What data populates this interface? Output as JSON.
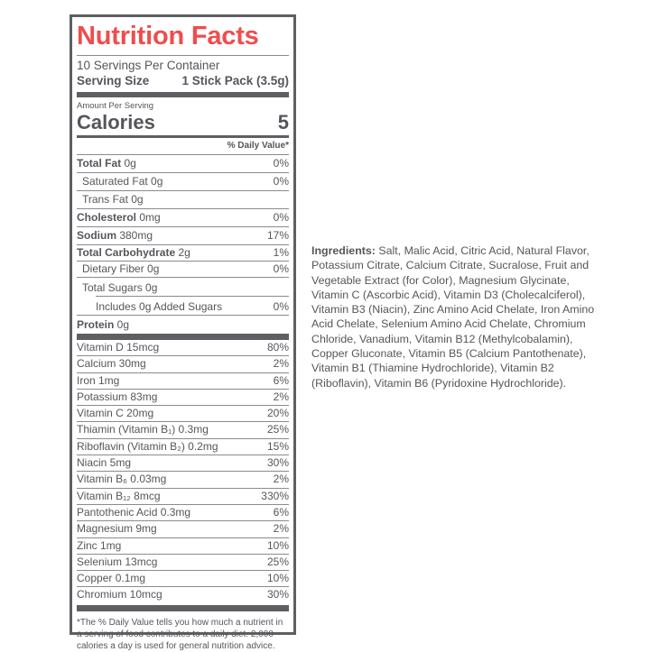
{
  "colors": {
    "title": "#f04c4c",
    "text": "#55565a",
    "rule": "#5e5f63"
  },
  "label": {
    "title": "Nutrition Facts",
    "servings_per_container": "10 Servings Per Container",
    "serving_size_label": "Serving Size",
    "serving_size_value": "1 Stick Pack (3.5g)",
    "amount_per_serving": "Amount Per Serving",
    "calories_label": "Calories",
    "calories_value": "5",
    "daily_value_header": "% Daily Value*",
    "nutrients": [
      {
        "name": "Total Fat",
        "amount": " 0g",
        "dv": "0%"
      },
      {
        "name": "Saturated Fat 0g",
        "amount": "",
        "dv": "0%"
      },
      {
        "name": "Trans Fat 0g",
        "amount": "",
        "dv": ""
      },
      {
        "name": "Cholesterol",
        "amount": " 0mg",
        "dv": "0%"
      },
      {
        "name": "Sodium",
        "amount": " 380mg",
        "dv": "17%"
      },
      {
        "name": "Total Carbohydrate",
        "amount": " 2g",
        "dv": "1%"
      },
      {
        "name": "Dietary Fiber 0g",
        "amount": "",
        "dv": "0%"
      },
      {
        "name": "Total Sugars 0g",
        "amount": "",
        "dv": ""
      },
      {
        "name": "Includes 0g Added Sugars",
        "amount": "",
        "dv": "0%"
      },
      {
        "name": "Protein",
        "amount": " 0g",
        "dv": ""
      }
    ],
    "vitamins": [
      {
        "name": "Vitamin D 15mcg",
        "dv": "80%"
      },
      {
        "name": "Calcium 30mg",
        "dv": "2%"
      },
      {
        "name": "Iron 1mg",
        "dv": "6%"
      },
      {
        "name": "Potassium 83mg",
        "dv": "2%"
      },
      {
        "name": "Vitamin C 20mg",
        "dv": "20%"
      },
      {
        "name": "Thiamin (Vitamin B₁) 0.3mg",
        "dv": "25%"
      },
      {
        "name": "Riboflavin (Vitamin B₂) 0.2mg",
        "dv": "15%"
      },
      {
        "name": "Niacin 5mg",
        "dv": "30%"
      },
      {
        "name": "Vitamin B₆ 0.03mg",
        "dv": "2%"
      },
      {
        "name": "Vitamin B₁₂ 8mcg",
        "dv": "330%"
      },
      {
        "name": "Pantothenic Acid 0.3mg",
        "dv": "6%"
      },
      {
        "name": "Magnesium 9mg",
        "dv": "2%"
      },
      {
        "name": "Zinc 1mg",
        "dv": "10%"
      },
      {
        "name": "Selenium 13mcg",
        "dv": "25%"
      },
      {
        "name": "Copper 0.1mg",
        "dv": "10%"
      },
      {
        "name": "Chromium 10mcg",
        "dv": "30%"
      }
    ],
    "footnote": "*The % Daily Value tells you how much a nutrient in a serving of food contributes to a daily diet. 2,000 calories a day is used for general nutrition advice."
  },
  "ingredients": {
    "heading": "Ingredients:",
    "text": " Salt, Malic Acid, Citric Acid, Natural Flavor, Potassium Citrate, Calcium Citrate, Sucralose, Fruit and Vegetable Extract (for Color), Magnesium Glycinate, Vitamin C (Ascorbic Acid), Vitamin D3 (Cholecalciferol), Vitamin B3 (Niacin), Zinc Amino Acid Chelate, Iron Amino Acid Chelate, Selenium Amino Acid Chelate, Chromium Chloride, Vanadium, Vitamin B12 (Methylcobalamin), Copper Gluconate, Vitamin B5 (Calcium Pantothenate), Vitamin B1 (Thiamine Hydrochloride), Vitamin B2 (Riboflavin), Vitamin B6 (Pyridoxine Hydrochloride)."
  }
}
